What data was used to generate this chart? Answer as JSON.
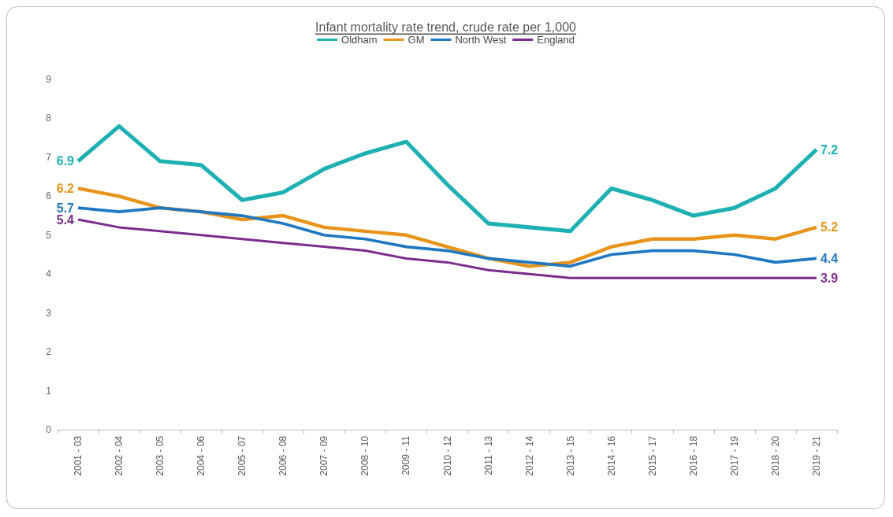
{
  "chart_data": {
    "type": "line",
    "title": "Infant mortality rate trend, crude rate per 1,000",
    "categories": [
      "2001 - 03",
      "2002 - 04",
      "2003 - 05",
      "2004 - 06",
      "2005 - 07",
      "2006 - 08",
      "2007 - 09",
      "2008 - 10",
      "2009 - 11",
      "2010 - 12",
      "2011 - 13",
      "2012 - 14",
      "2013 - 15",
      "2014 - 16",
      "2015 - 17",
      "2016 - 18",
      "2017 - 19",
      "2018 - 20",
      "2019 - 21"
    ],
    "series": [
      {
        "name": "Oldham",
        "color": "#1fb0b3",
        "values": [
          6.9,
          7.8,
          6.9,
          6.8,
          5.9,
          6.1,
          6.7,
          7.1,
          7.4,
          6.3,
          5.3,
          5.2,
          5.1,
          6.2,
          5.9,
          5.5,
          5.7,
          6.2,
          7.2
        ],
        "value_labels": [
          "6.9",
          null,
          null,
          null,
          null,
          null,
          null,
          null,
          null,
          null,
          null,
          null,
          null,
          null,
          null,
          null,
          null,
          null,
          "7.2"
        ]
      },
      {
        "name": "GM",
        "color": "#e8941a",
        "values": [
          6.2,
          6.0,
          5.7,
          5.6,
          5.4,
          5.5,
          5.2,
          5.1,
          5.0,
          4.7,
          4.4,
          4.2,
          4.3,
          4.7,
          4.9,
          4.9,
          5.0,
          4.9,
          5.2
        ],
        "value_labels": [
          "6.2",
          null,
          null,
          null,
          null,
          null,
          null,
          null,
          null,
          null,
          null,
          null,
          null,
          null,
          null,
          null,
          null,
          null,
          "5.2"
        ]
      },
      {
        "name": "North West",
        "color": "#1f78c1",
        "values": [
          5.7,
          5.6,
          5.7,
          5.6,
          5.5,
          5.3,
          5.0,
          4.9,
          4.7,
          4.6,
          4.4,
          4.3,
          4.2,
          4.5,
          4.6,
          4.6,
          4.5,
          4.3,
          4.4
        ],
        "value_labels": [
          "5.7",
          null,
          null,
          null,
          null,
          null,
          null,
          null,
          null,
          null,
          null,
          null,
          null,
          null,
          null,
          null,
          null,
          null,
          "4.4"
        ]
      },
      {
        "name": "England",
        "color": "#7b2d8e",
        "values": [
          5.4,
          5.2,
          5.1,
          5.0,
          4.9,
          4.8,
          4.7,
          4.6,
          4.4,
          4.3,
          4.1,
          4.0,
          3.9,
          3.9,
          3.9,
          3.9,
          3.9,
          3.9,
          3.9
        ],
        "value_labels": [
          "5.4",
          null,
          null,
          null,
          null,
          null,
          null,
          null,
          null,
          null,
          null,
          null,
          null,
          null,
          null,
          null,
          null,
          null,
          "3.9"
        ]
      }
    ],
    "ylim": [
      0,
      9
    ],
    "yticks": [
      0,
      1,
      2,
      3,
      4,
      5,
      6,
      7,
      8,
      9
    ],
    "grid": false,
    "legend": "top",
    "marker": "none",
    "line_style": "solid"
  }
}
